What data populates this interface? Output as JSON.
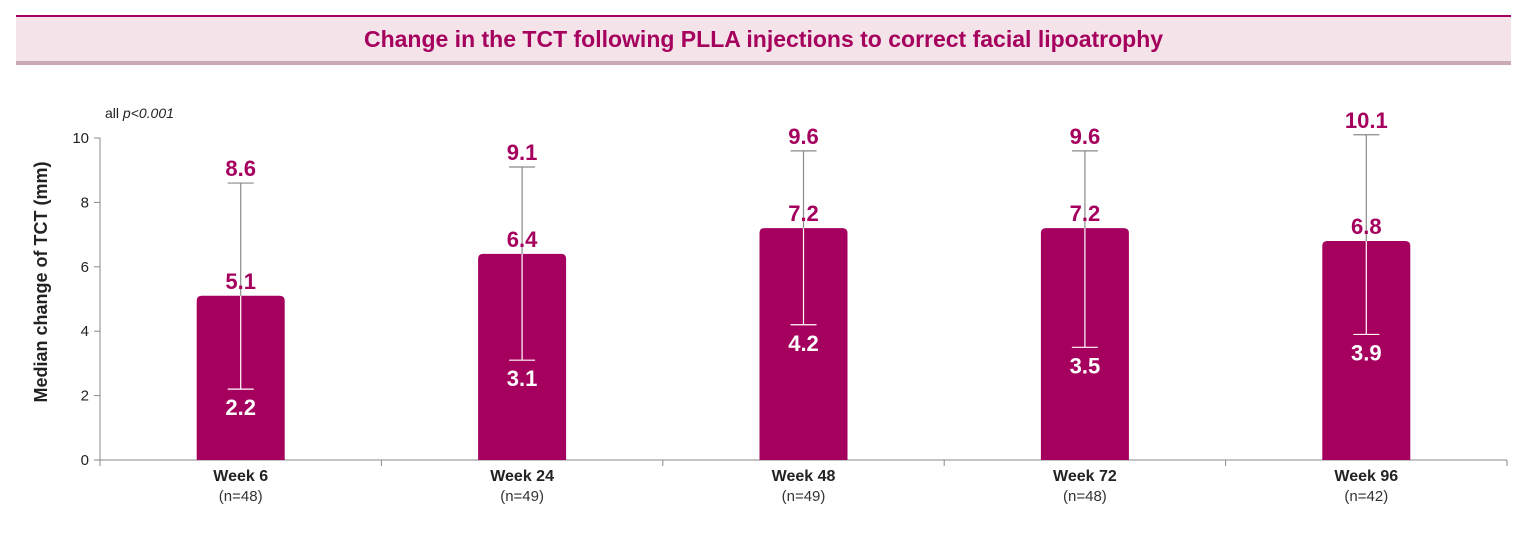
{
  "title": "Change in the TCT following PLLA injections to correct facial lipoatrophy",
  "chart_data": {
    "type": "bar",
    "title": "Change in the TCT following PLLA injections to correct facial lipoatrophy",
    "ylabel": "Median change of TCT (mm)",
    "xlabel": "",
    "ylim": [
      0,
      10
    ],
    "yticks": [
      "0",
      "2",
      "4",
      "6",
      "8",
      "10"
    ],
    "annotation_prefix": "all ",
    "annotation_italic": "p<0.001",
    "categories": [
      "Week 6",
      "Week 24",
      "Week 48",
      "Week 72",
      "Week 96"
    ],
    "n_labels": [
      "(n=48)",
      "(n=49)",
      "(n=49)",
      "(n=48)",
      "(n=42)"
    ],
    "values": [
      5.1,
      6.4,
      7.2,
      7.2,
      6.8
    ],
    "upper": [
      8.6,
      9.1,
      9.6,
      9.6,
      10.1
    ],
    "lower": [
      2.2,
      3.1,
      4.2,
      3.5,
      3.9
    ],
    "value_labels": [
      "5.1",
      "6.4",
      "7.2",
      "7.2",
      "6.8"
    ],
    "upper_labels": [
      "8.6",
      "9.1",
      "9.6",
      "9.6",
      "10.1"
    ],
    "lower_labels": [
      "2.2",
      "3.1",
      "4.2",
      "3.5",
      "3.9"
    ],
    "bar_color": "#a6005e",
    "grid": false
  }
}
